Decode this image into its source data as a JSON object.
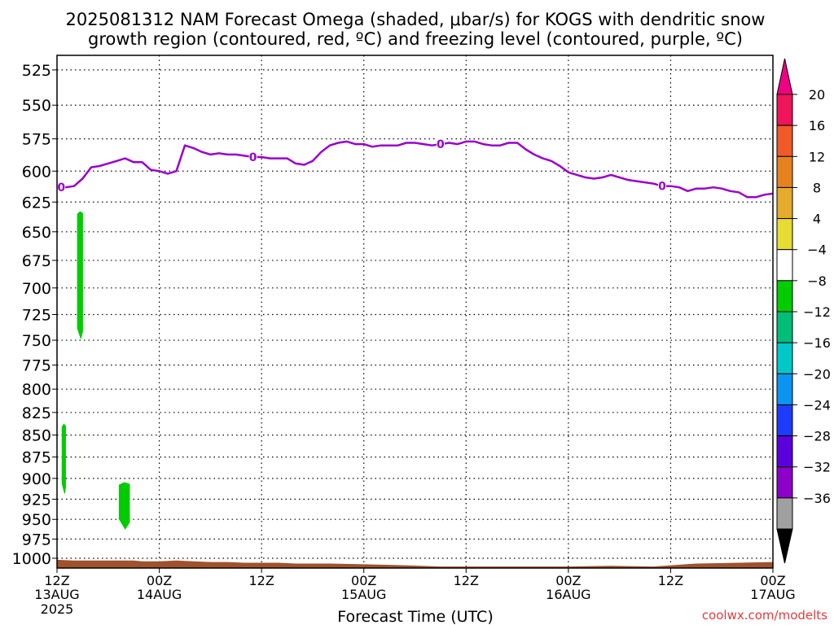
{
  "title_line1": "2025081312 NAM Forecast Omega (shaded, μbar/s) for KOGS with dendritic snow",
  "title_line2": "growth region (contoured, red, ºC) and freezing level (contoured, purple, ºC)",
  "xlabel": "Forecast Time (UTC)",
  "watermark": "coolwx.com/modelts",
  "chart_data": {
    "type": "time-height",
    "x_unit": "forecast hour (from 2025-08-13 12Z)",
    "xlim": [
      0,
      84
    ],
    "ylim_hpa": [
      1013,
      515
    ],
    "y_scale": "log-pressure (inverted)",
    "y_ticks": [
      525,
      550,
      575,
      600,
      625,
      650,
      675,
      700,
      725,
      750,
      775,
      800,
      825,
      850,
      875,
      900,
      925,
      950,
      975,
      1000
    ],
    "x_ticks": [
      {
        "hour": 0,
        "top": "12Z",
        "mid": "13AUG",
        "bot": "2025"
      },
      {
        "hour": 12,
        "top": "00Z",
        "mid": "14AUG",
        "bot": ""
      },
      {
        "hour": 24,
        "top": "12Z",
        "mid": "",
        "bot": ""
      },
      {
        "hour": 36,
        "top": "00Z",
        "mid": "15AUG",
        "bot": ""
      },
      {
        "hour": 48,
        "top": "12Z",
        "mid": "",
        "bot": ""
      },
      {
        "hour": 60,
        "top": "00Z",
        "mid": "16AUG",
        "bot": ""
      },
      {
        "hour": 72,
        "top": "12Z",
        "mid": "",
        "bot": ""
      },
      {
        "hour": 84,
        "top": "00Z",
        "mid": "17AUG",
        "bot": ""
      }
    ],
    "grid": true,
    "freezing_level": {
      "label": "0",
      "color": "#9900cc",
      "hours": [
        0,
        1,
        2,
        3,
        4,
        5,
        6,
        7,
        8,
        9,
        10,
        11,
        12,
        13,
        14,
        15,
        16,
        17,
        18,
        19,
        20,
        21,
        22,
        23,
        24,
        25,
        26,
        27,
        28,
        29,
        30,
        31,
        32,
        33,
        34,
        35,
        36,
        37,
        38,
        39,
        40,
        41,
        42,
        43,
        44,
        45,
        46,
        47,
        48,
        49,
        50,
        51,
        52,
        53,
        54,
        55,
        56,
        57,
        58,
        59,
        60,
        61,
        62,
        63,
        64,
        65,
        66,
        67,
        68,
        69,
        70,
        71,
        72,
        73,
        74,
        75,
        76,
        77,
        78,
        79,
        80,
        81,
        82,
        83,
        84
      ],
      "pressure_hpa": [
        613,
        613,
        612,
        606,
        597,
        596,
        594,
        592,
        590,
        593,
        593,
        599,
        600,
        602,
        600,
        580,
        582,
        585,
        587,
        586,
        587,
        587,
        588,
        589,
        589,
        590,
        590,
        590,
        594,
        595,
        592,
        585,
        580,
        578,
        577,
        579,
        579,
        581,
        580,
        580,
        580,
        578,
        578,
        579,
        580,
        579,
        578,
        579,
        577,
        577,
        579,
        580,
        580,
        578,
        578,
        583,
        587,
        590,
        592,
        596,
        601,
        603,
        605,
        606,
        605,
        603,
        605,
        607,
        608,
        609,
        610,
        612,
        612,
        613,
        616,
        614,
        614,
        613,
        614,
        616,
        617,
        621,
        621,
        619,
        618
      ],
      "label_hours": [
        0.5,
        23,
        45,
        71
      ]
    },
    "omega_shaded": [
      {
        "name": "green patch 1",
        "band": "-8 to -4",
        "color": "#00cc00",
        "hours": [
          2.4,
          3.0
        ],
        "pressure_hpa": [
          633,
          748
        ]
      },
      {
        "name": "green patch 2",
        "band": "-8 to -4",
        "color": "#00cc00",
        "hours": [
          0.6,
          1.0
        ],
        "pressure_hpa": [
          838,
          918
        ]
      },
      {
        "name": "green patch 3",
        "band": "-8 to -4",
        "color": "#00cc00",
        "hours": [
          7.3,
          8.5
        ],
        "pressure_hpa": [
          905,
          962
        ]
      }
    ],
    "surface_fill": {
      "color": "#a0522d",
      "top_hours": [
        0,
        2,
        5,
        9,
        10,
        12,
        14,
        16,
        18,
        20,
        22,
        24,
        26,
        28,
        32,
        36,
        40,
        45,
        50,
        55,
        60,
        65,
        70,
        75,
        80,
        84
      ],
      "top_hpa": [
        1002,
        1003,
        1003,
        1003,
        1004,
        1004,
        1003,
        1004,
        1005,
        1005,
        1006,
        1006,
        1006,
        1007,
        1007,
        1008,
        1009,
        1011,
        1011,
        1011,
        1011,
        1010,
        1011,
        1007,
        1006,
        1005
      ]
    },
    "colorbar": {
      "labels": [
        "20",
        "16",
        "12",
        "8",
        "4",
        "−4",
        "−8",
        "−12",
        "−16",
        "−20",
        "−24",
        "−28",
        "−32",
        "−36"
      ],
      "colors": [
        "#f0145a",
        "#f05a28",
        "#e6821e",
        "#e6aa2d",
        "#e6dc32",
        "#ffffff",
        "#00cc00",
        "#00be78",
        "#00c8c8",
        "#0a96f0",
        "#1e3cff",
        "#5a00dc",
        "#8c00c8",
        "#a0a0a0"
      ],
      "top_arrow": "#f00082",
      "bottom_arrow": "#000000"
    }
  }
}
